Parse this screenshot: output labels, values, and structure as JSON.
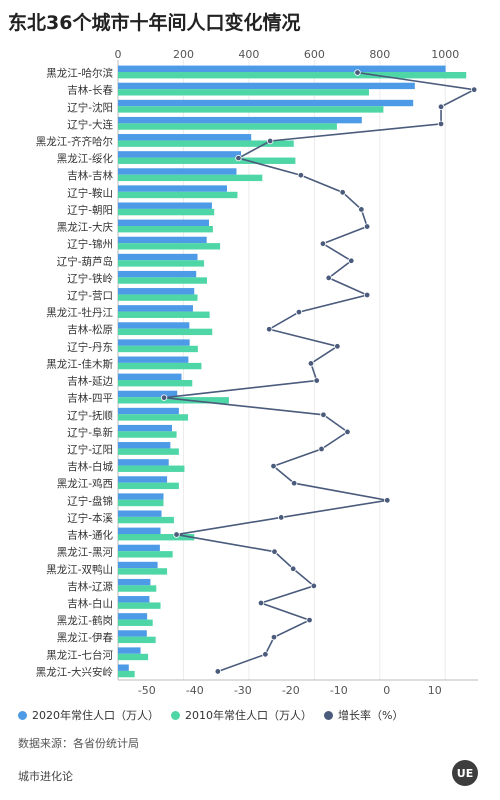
{
  "title": "东北36个城市十年间人口变化情况",
  "source": "数据来源：各省份统计局",
  "brand": "城市进化论",
  "logo_text": "UE",
  "watermark": "城市进化论",
  "colors": {
    "pop2020": "#4d9be6",
    "pop2010": "#4fd6a6",
    "growth": "#4a5b7c"
  },
  "legend": [
    {
      "label": "2020年常住人口（万人）",
      "color": "#4d9be6"
    },
    {
      "label": "2010年常住人口（万人）",
      "color": "#4fd6a6"
    },
    {
      "label": "增长率（%）",
      "color": "#4a5b7c"
    }
  ],
  "chart_data": {
    "type": "bar",
    "orientation": "horizontal",
    "categories": [
      "黑龙江-哈尔滨",
      "吉林-长春",
      "辽宁-沈阳",
      "辽宁-大连",
      "黑龙江-齐齐哈尔",
      "黑龙江-绥化",
      "吉林-吉林",
      "辽宁-鞍山",
      "辽宁-朝阳",
      "黑龙江-大庆",
      "辽宁-锦州",
      "辽宁-葫芦岛",
      "辽宁-铁岭",
      "辽宁-营口",
      "黑龙江-牡丹江",
      "吉林-松原",
      "辽宁-丹东",
      "黑龙江-佳木斯",
      "吉林-延边",
      "吉林-四平",
      "辽宁-抚顺",
      "辽宁-阜新",
      "辽宁-辽阳",
      "吉林-白城",
      "黑龙江-鸡西",
      "辽宁-盘锦",
      "辽宁-本溪",
      "吉林-通化",
      "黑龙江-黑河",
      "黑龙江-双鸭山",
      "吉林-辽源",
      "吉林-白山",
      "黑龙江-鹤岗",
      "黑龙江-伊春",
      "黑龙江-七台河",
      "黑龙江-大兴安岭"
    ],
    "series": [
      {
        "name": "2020年常住人口（万人）",
        "axis": "top",
        "values": [
          1001,
          907,
          902,
          745,
          407,
          376,
          362,
          333,
          287,
          278,
          271,
          243,
          239,
          233,
          229,
          218,
          219,
          215,
          194,
          181,
          186,
          165,
          160,
          155,
          150,
          139,
          133,
          130,
          128,
          121,
          99,
          96,
          89,
          88,
          69,
          33
        ]
      },
      {
        "name": "2010年常住人口（万人）",
        "axis": "top",
        "values": [
          1064,
          767,
          811,
          669,
          537,
          542,
          441,
          365,
          294,
          290,
          312,
          263,
          272,
          243,
          280,
          288,
          244,
          255,
          227,
          339,
          214,
          179,
          186,
          203,
          186,
          139,
          171,
          233,
          167,
          150,
          117,
          130,
          106,
          115,
          92,
          51
        ]
      },
      {
        "name": "增长率（%）",
        "axis": "bottom",
        "type": "line",
        "values": [
          -6.1,
          18.2,
          11.3,
          11.3,
          -24.3,
          -30.9,
          -17.9,
          -9.2,
          -5.3,
          -4.1,
          -13.3,
          -7.4,
          -12.1,
          -4.1,
          -18.3,
          -24.5,
          -10.3,
          -15.8,
          -14.6,
          -46.4,
          -13.2,
          -8.2,
          -13.6,
          -23.6,
          -19.3,
          0.1,
          -22.0,
          -43.8,
          -23.4,
          -19.5,
          -15.2,
          -26.2,
          -16.1,
          -23.5,
          -25.3,
          -35.2
        ]
      }
    ],
    "x_top": {
      "ticks": [
        0,
        200,
        400,
        600,
        800,
        1000
      ],
      "range": [
        0,
        1100
      ]
    },
    "x_bottom": {
      "ticks": [
        -50,
        -40,
        -30,
        -20,
        -10,
        0,
        10
      ],
      "range": [
        -56,
        19
      ]
    },
    "legend_position": "bottom",
    "grid": true
  }
}
